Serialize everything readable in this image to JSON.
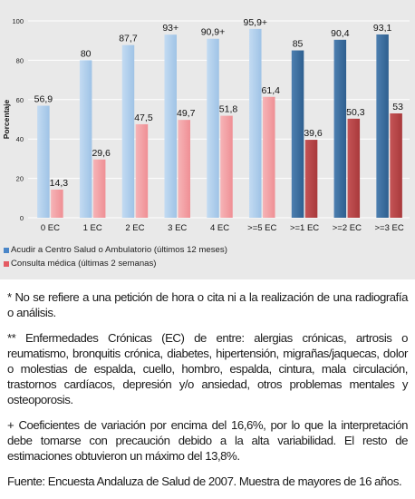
{
  "colors": {
    "light_blue": "#9fc3e6",
    "dark_blue": "#2e5f8f",
    "light_red": "#ef8f94",
    "dark_red": "#a8393b",
    "panel_bg": "#e9e9e9"
  },
  "chart_data": {
    "type": "bar",
    "categories": [
      "0 EC",
      "1 EC",
      "2 EC",
      "3 EC",
      "4 EC",
      ">=5 EC",
      ">=1 EC",
      ">=2 EC",
      ">=3 EC"
    ],
    "series": [
      {
        "name": "Acudir a Centro Salud o Ambulatorio (últimos 12 meses)",
        "values": [
          56.9,
          80,
          87.7,
          93,
          90.9,
          95.9,
          85,
          90.4,
          93.1
        ],
        "labels": [
          "56,9",
          "80",
          "87,7",
          "93+",
          "90,9+",
          "95,9+",
          "85",
          "90,4",
          "93,1"
        ]
      },
      {
        "name": "Consulta médica (últimas 2 semanas)",
        "values": [
          14.3,
          29.6,
          47.5,
          49.7,
          51.8,
          61.4,
          39.6,
          50.3,
          53
        ],
        "labels": [
          "14,3",
          "29,6",
          "47,5",
          "49,7",
          "51,8",
          "61,4",
          "39,6",
          "50,3",
          "53"
        ]
      }
    ],
    "ylabel": "Porcentaje",
    "ylim": [
      0,
      100
    ],
    "yticks": [
      0,
      20,
      40,
      60,
      80,
      100
    ],
    "grid": true,
    "legend": "bottom-left",
    "dark_from_index": 6
  },
  "notes": [
    "* No se refiere a una petición de hora o cita ni a la realización de una radiografía o análisis.",
    "** Enfermedades Crónicas (EC) de entre: alergias crónicas, artrosis o reumatismo, bronquitis crónica, diabetes, hipertensión, migrañas/jaquecas, dolor o molestias de espalda, cuello, hombro, espalda, cintura, mala circulación, trastornos cardíacos, depresión y/o ansiedad, otros problemas mentales y osteoporosis.",
    "+ Coeficientes de variación por encima del 16,6%, por lo que la interpretación debe tomarse con precaución debido a la alta variabilidad. El resto de estimaciones obtuvieron un máximo del 13,8%."
  ],
  "source": "Fuente: Encuesta Andaluza de Salud de 2007. Muestra de mayores de 16 años."
}
